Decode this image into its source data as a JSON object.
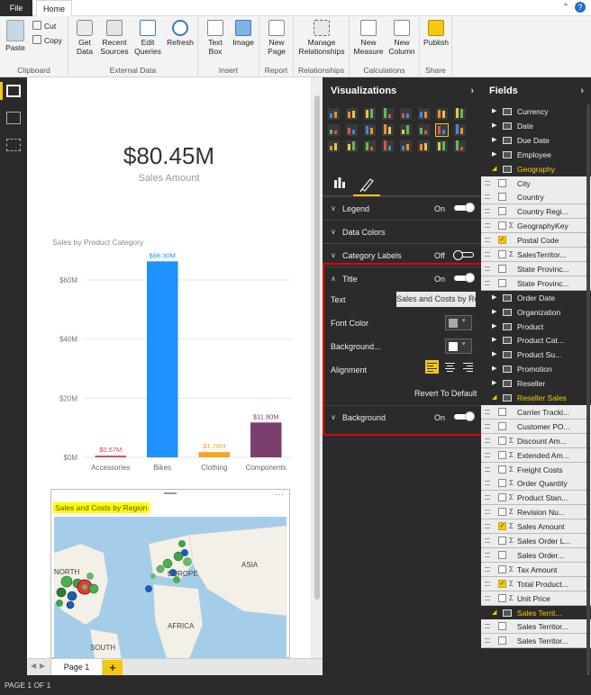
{
  "ribbon": {
    "tabs": [
      "File",
      "Home"
    ],
    "groups": {
      "clipboard": {
        "label": "Clipboard",
        "paste": "Paste",
        "cut": "Cut",
        "copy": "Copy"
      },
      "external_data": {
        "label": "External Data",
        "get_data": "Get Data",
        "recent_sources": "Recent Sources",
        "edit_queries": "Edit Queries",
        "refresh": "Refresh"
      },
      "insert": {
        "label": "Insert",
        "text_box": "Text Box",
        "image": "Image"
      },
      "report": {
        "label": "Report",
        "new_page": "New Page"
      },
      "relationships": {
        "label": "Relationships",
        "manage": "Manage Relationships"
      },
      "calculations": {
        "label": "Calculations",
        "new_measure": "New Measure",
        "new_column": "New Column"
      },
      "share": {
        "label": "Share",
        "publish": "Publish"
      }
    }
  },
  "kpi": {
    "value": "$80.45M",
    "label": "Sales Amount"
  },
  "chart_data": {
    "type": "bar",
    "title": "Sales by Product Category",
    "categories": [
      "Accessories",
      "Bikes",
      "Clothing",
      "Components"
    ],
    "values": [
      0.57,
      66.3,
      1.78,
      11.8
    ],
    "data_labels": [
      "$0.57M",
      "$66.30M",
      "$1.78M",
      "$11.80M"
    ],
    "colors": [
      "#d64550",
      "#1e90ff",
      "#f5a623",
      "#7b3f6e"
    ],
    "ticks": [
      "$0M",
      "$20M",
      "$40M",
      "$60M"
    ],
    "tick_values": [
      0,
      20,
      40,
      60
    ],
    "ylim": [
      0,
      67
    ],
    "grid": true
  },
  "map": {
    "title": "Sales and Costs by Region",
    "labels": {
      "north": "NORTH",
      "europe": "EUROPE",
      "asia": "ASIA",
      "africa": "AFRICA",
      "south": "SOUTH"
    },
    "more": "···"
  },
  "pages": {
    "tab": "Page 1",
    "add": "+"
  },
  "status": "PAGE 1 OF 1",
  "viz": {
    "title": "Visualizations",
    "legend": {
      "label": "Legend",
      "state": "On"
    },
    "data_colors": {
      "label": "Data Colors"
    },
    "category_labels": {
      "label": "Category Labels",
      "state": "Off"
    },
    "title_card": {
      "label": "Title",
      "state": "On"
    },
    "text_label": "Text",
    "text_value": "Sales and Costs by Region",
    "font_color_label": "Font Color",
    "background_color_label": "Background...",
    "alignment_label": "Alignment",
    "revert": "Revert To Default",
    "background": {
      "label": "Background",
      "state": "On"
    },
    "colors": {
      "font": "#aaaaaa",
      "background": "#ffffff",
      "accent": "#f2c811",
      "highlight": "#e0000a"
    }
  },
  "fields": {
    "title": "Fields",
    "rows": [
      {
        "kind": "table",
        "name": "Currency"
      },
      {
        "kind": "table",
        "name": "Date"
      },
      {
        "kind": "table",
        "name": "Due Date"
      },
      {
        "kind": "table",
        "name": "Employee"
      },
      {
        "kind": "table-open",
        "name": "Geography"
      },
      {
        "kind": "field",
        "name": "City"
      },
      {
        "kind": "field",
        "name": "Country"
      },
      {
        "kind": "field",
        "name": "Country Regi..."
      },
      {
        "kind": "field",
        "name": "GeographyKey",
        "sigma": true
      },
      {
        "kind": "field",
        "name": "Postal Code",
        "checked": true
      },
      {
        "kind": "field",
        "name": "SalesTerritor...",
        "sigma": true
      },
      {
        "kind": "field",
        "name": "State Provinc..."
      },
      {
        "kind": "field",
        "name": "State Provinc..."
      },
      {
        "kind": "table",
        "name": "Order Date"
      },
      {
        "kind": "table",
        "name": "Organization"
      },
      {
        "kind": "table",
        "name": "Product"
      },
      {
        "kind": "table",
        "name": "Product Cat..."
      },
      {
        "kind": "table",
        "name": "Product Su..."
      },
      {
        "kind": "table",
        "name": "Promotion"
      },
      {
        "kind": "table",
        "name": "Reseller"
      },
      {
        "kind": "table-open",
        "name": "Reseller Sales"
      },
      {
        "kind": "field",
        "name": "Carrier Tracki..."
      },
      {
        "kind": "field",
        "name": "Customer PO..."
      },
      {
        "kind": "field",
        "name": "Discount Am...",
        "sigma": true
      },
      {
        "kind": "field",
        "name": "Extended Am...",
        "sigma": true
      },
      {
        "kind": "field",
        "name": "Freight Costs",
        "sigma": true
      },
      {
        "kind": "field",
        "name": "Order Quantity",
        "sigma": true
      },
      {
        "kind": "field",
        "name": "Product Stan...",
        "sigma": true
      },
      {
        "kind": "field",
        "name": "Revision Nu...",
        "sigma": true
      },
      {
        "kind": "field",
        "name": "Sales Amount",
        "sigma": true,
        "checked": true
      },
      {
        "kind": "field",
        "name": "Sales Order L...",
        "sigma": true
      },
      {
        "kind": "field",
        "name": "Sales Order..."
      },
      {
        "kind": "field",
        "name": "Tax Amount",
        "sigma": true
      },
      {
        "kind": "field",
        "name": "Total Product...",
        "sigma": true,
        "checked": true
      },
      {
        "kind": "field",
        "name": "Unit Price",
        "sigma": true
      },
      {
        "kind": "table-open",
        "name": "Sales Territ..."
      },
      {
        "kind": "field",
        "name": "Sales Territor..."
      },
      {
        "kind": "field",
        "name": "Sales Territor..."
      }
    ]
  }
}
